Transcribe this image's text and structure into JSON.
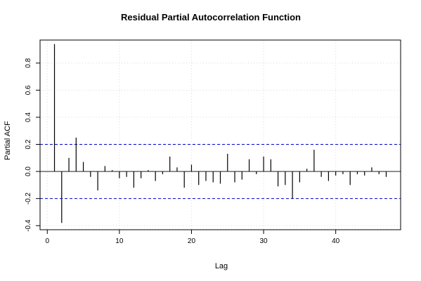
{
  "chart_data": {
    "type": "bar",
    "title": "Residual Partial Autocorrelation Function",
    "xlabel": "Lag",
    "ylabel": "Partial ACF",
    "xlim": [
      -1,
      49
    ],
    "ylim": [
      -0.43,
      0.97
    ],
    "x_ticks": [
      0,
      10,
      20,
      30,
      40
    ],
    "y_ticks": [
      -0.4,
      -0.2,
      0.0,
      0.2,
      0.4,
      0.6,
      0.8
    ],
    "y_tick_labels": [
      "-0.4",
      "-0.2",
      "0.0",
      "0.2",
      "0.4",
      "0.6",
      "0.8"
    ],
    "grid": true,
    "confidence_limits": [
      0.2,
      -0.2
    ],
    "colors": {
      "bars": "#000000",
      "confidence": "#0000cc",
      "grid": "#d9d9d9"
    },
    "x": [
      1,
      2,
      3,
      4,
      5,
      6,
      7,
      8,
      9,
      10,
      11,
      12,
      13,
      14,
      15,
      16,
      17,
      18,
      19,
      20,
      21,
      22,
      23,
      24,
      25,
      26,
      27,
      28,
      29,
      30,
      31,
      32,
      33,
      34,
      35,
      36,
      37,
      38,
      39,
      40,
      41,
      42,
      43,
      44,
      45,
      46,
      47,
      48
    ],
    "values": [
      0.94,
      -0.38,
      0.1,
      0.25,
      0.07,
      -0.04,
      -0.14,
      0.04,
      0.01,
      -0.05,
      -0.04,
      -0.12,
      -0.05,
      0.01,
      -0.07,
      -0.02,
      0.11,
      0.03,
      -0.12,
      0.05,
      -0.1,
      -0.07,
      -0.08,
      -0.09,
      0.13,
      -0.08,
      -0.06,
      0.09,
      -0.02,
      0.11,
      0.09,
      -0.11,
      -0.1,
      -0.2,
      -0.08,
      0.02,
      0.16,
      -0.04,
      -0.07,
      -0.03,
      -0.02,
      -0.1,
      -0.02,
      -0.03,
      0.03,
      -0.02,
      -0.04,
      0.0
    ]
  }
}
